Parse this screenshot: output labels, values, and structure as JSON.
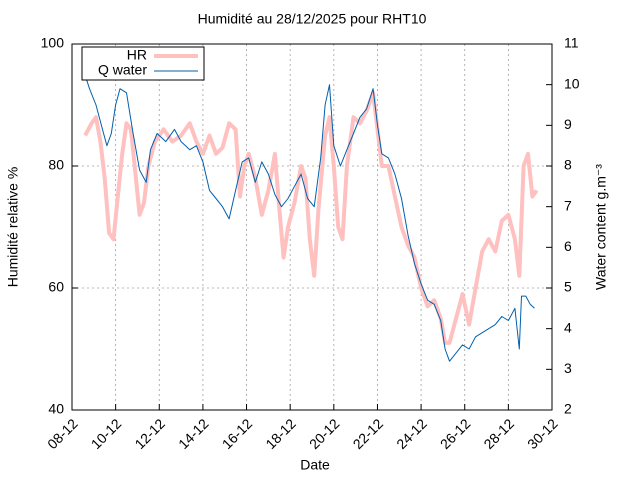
{
  "chart_data": {
    "type": "line",
    "title": "Humidité au 28/12/2025 pour RHT10",
    "x_label": "Date",
    "y_label": "Humidité relative %",
    "y2_label": "Water content g.m⁻³",
    "xlim": [
      8,
      30
    ],
    "xticks": [
      {
        "value": 8,
        "label": "08-12"
      },
      {
        "value": 10,
        "label": "10-12"
      },
      {
        "value": 12,
        "label": "12-12"
      },
      {
        "value": 14,
        "label": "14-12"
      },
      {
        "value": 16,
        "label": "16-12"
      },
      {
        "value": 18,
        "label": "18-12"
      },
      {
        "value": 20,
        "label": "20-12"
      },
      {
        "value": 22,
        "label": "22-12"
      },
      {
        "value": 24,
        "label": "24-12"
      },
      {
        "value": 26,
        "label": "26-12"
      },
      {
        "value": 28,
        "label": "28-12"
      },
      {
        "value": 30,
        "label": "30-12"
      }
    ],
    "ylim": [
      40,
      100
    ],
    "yticks": [
      40,
      60,
      80,
      100
    ],
    "y2lim": [
      2,
      11
    ],
    "y2ticks": [
      2,
      3,
      4,
      5,
      6,
      7,
      8,
      9,
      10,
      11
    ],
    "grid": true,
    "legend": "top-left",
    "series": [
      {
        "name": "HR",
        "color": "#ffc0c0",
        "axis": "y",
        "x": [
          8.6,
          8.9,
          9.1,
          9.3,
          9.5,
          9.7,
          9.9,
          10.1,
          10.3,
          10.5,
          10.7,
          10.9,
          11.1,
          11.3,
          11.5,
          11.8,
          12.2,
          12.6,
          13.0,
          13.4,
          13.7,
          14.0,
          14.3,
          14.6,
          14.9,
          15.2,
          15.5,
          15.7,
          15.9,
          16.1,
          16.4,
          16.7,
          17.0,
          17.3,
          17.5,
          17.7,
          17.9,
          18.2,
          18.5,
          18.7,
          18.9,
          19.1,
          19.3,
          19.6,
          19.8,
          20.0,
          20.2,
          20.4,
          20.6,
          20.9,
          21.2,
          21.5,
          21.8,
          22.0,
          22.2,
          22.5,
          22.8,
          23.1,
          23.4,
          23.7,
          24.0,
          24.3,
          24.6,
          24.9,
          25.1,
          25.3,
          25.6,
          25.9,
          26.2,
          26.5,
          26.8,
          27.1,
          27.4,
          27.7,
          28.0,
          28.3,
          28.5,
          28.7,
          28.9,
          29.1,
          29.3
        ],
        "values": [
          85,
          87,
          88,
          84,
          78,
          69,
          68,
          75,
          82,
          87,
          86,
          79,
          72,
          74,
          80,
          84,
          86,
          84,
          85,
          87,
          84,
          82,
          85,
          82,
          83,
          87,
          86,
          75,
          80,
          82,
          78,
          72,
          76,
          82,
          73,
          65,
          70,
          74,
          80,
          78,
          68,
          62,
          73,
          85,
          88,
          80,
          70,
          68,
          80,
          88,
          87,
          89,
          92,
          86,
          80,
          80,
          75,
          70,
          67,
          65,
          60,
          57,
          58,
          55,
          51,
          51,
          55,
          59,
          54,
          60,
          66,
          68,
          66,
          71,
          72,
          68,
          62,
          80,
          82,
          75,
          76
        ]
      },
      {
        "name": "Q water",
        "color": "#0060ad",
        "axis": "y2",
        "x": [
          8.5,
          8.8,
          9.1,
          9.4,
          9.6,
          9.8,
          10.0,
          10.2,
          10.5,
          10.8,
          11.1,
          11.4,
          11.6,
          11.9,
          12.3,
          12.7,
          13.0,
          13.4,
          13.7,
          14.0,
          14.3,
          14.6,
          14.9,
          15.2,
          15.5,
          15.8,
          16.1,
          16.4,
          16.7,
          17.0,
          17.3,
          17.6,
          17.9,
          18.2,
          18.5,
          18.8,
          19.1,
          19.4,
          19.6,
          19.8,
          20.0,
          20.3,
          20.6,
          20.9,
          21.2,
          21.5,
          21.8,
          22.0,
          22.2,
          22.5,
          22.8,
          23.1,
          23.4,
          23.7,
          24.0,
          24.3,
          24.6,
          24.9,
          25.1,
          25.3,
          25.6,
          25.9,
          26.2,
          26.5,
          26.8,
          27.1,
          27.4,
          27.7,
          28.0,
          28.3,
          28.5,
          28.6,
          28.8,
          29.0,
          29.2
        ],
        "values": [
          10.4,
          9.9,
          9.5,
          8.9,
          8.5,
          8.8,
          9.5,
          9.9,
          9.8,
          8.8,
          7.9,
          7.6,
          8.4,
          8.8,
          8.6,
          8.9,
          8.6,
          8.4,
          8.5,
          8.1,
          7.4,
          7.2,
          7.0,
          6.7,
          7.4,
          8.1,
          8.2,
          7.6,
          8.1,
          7.8,
          7.3,
          7.0,
          7.2,
          7.5,
          7.8,
          7.2,
          7.0,
          8.2,
          9.5,
          10.0,
          8.5,
          8.0,
          8.4,
          8.8,
          9.2,
          9.4,
          9.9,
          9.0,
          8.3,
          8.2,
          7.8,
          7.2,
          6.3,
          5.6,
          5.1,
          4.7,
          4.6,
          4.2,
          3.5,
          3.2,
          3.4,
          3.6,
          3.5,
          3.8,
          3.9,
          4.0,
          4.1,
          4.3,
          4.2,
          4.5,
          3.5,
          4.8,
          4.8,
          4.6,
          4.5
        ]
      }
    ]
  }
}
